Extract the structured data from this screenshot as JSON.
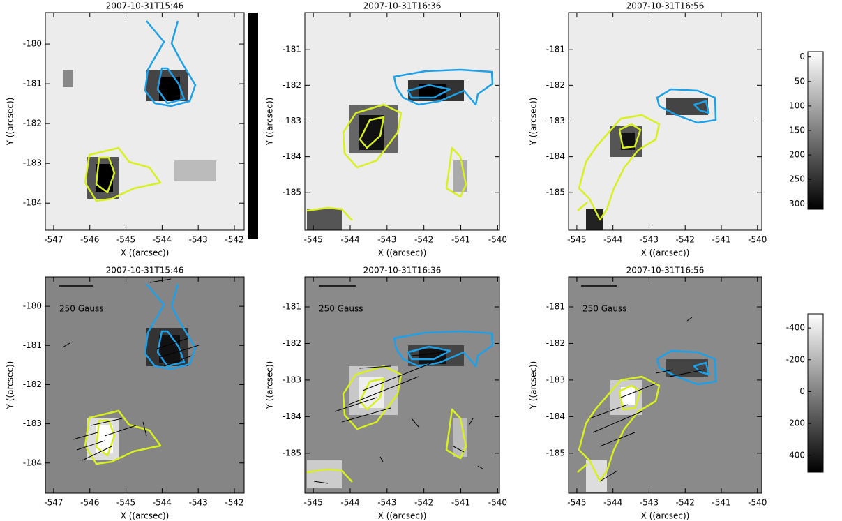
{
  "chart_data": [
    {
      "type": "image",
      "title": "2007-10-31T15:46",
      "x_label": "X ((arcsec))",
      "y_label": "Y ((arcsec))",
      "xlim": [
        -547.23,
        -541.73
      ],
      "ylim": [
        -184.68,
        -179.21
      ],
      "xticks": [
        -547,
        -546,
        -545,
        -544,
        -543,
        -542
      ],
      "yticks": [
        -184,
        -183,
        -182,
        -181,
        -180
      ]
    },
    {
      "type": "image",
      "title": "2007-10-31T16:36",
      "x_label": "X ((arcsec))",
      "y_label": "Y ((arcsec))",
      "xlim": [
        -545.23,
        -539.95
      ],
      "ylim": [
        -186.06,
        -179.96
      ],
      "xticks": [
        -545,
        -544,
        -543,
        -542,
        -541,
        -540
      ],
      "yticks": [
        -185,
        -184,
        -183,
        -182,
        -181
      ]
    },
    {
      "type": "image",
      "title": "2007-10-31T16:56",
      "x_label": "X ((arcsec))",
      "y_label": "Y ((arcsec))",
      "xlim": [
        -545.23,
        -539.88
      ],
      "ylim": [
        -186.06,
        -179.96
      ],
      "xticks": [
        -545,
        -544,
        -543,
        -542,
        -541,
        -540
      ],
      "yticks": [
        -185,
        -184,
        -183,
        -182,
        -181
      ]
    },
    {
      "type": "image",
      "title": "2007-10-31T15:46",
      "x_label": "X ((arcsec))",
      "y_label": "Y ((arcsec))",
      "annotation": "250 Gauss",
      "xlim": [
        -547.23,
        -541.73
      ],
      "ylim": [
        -184.77,
        -179.25
      ],
      "xticks": [
        -547,
        -546,
        -545,
        -544,
        -543,
        -542
      ],
      "yticks": [
        -184,
        -183,
        -182,
        -181,
        -180
      ]
    },
    {
      "type": "image",
      "title": "2007-10-31T16:36",
      "x_label": "X ((arcsec))",
      "y_label": "Y ((arcsec))",
      "annotation": "250 Gauss",
      "xlim": [
        -545.23,
        -539.95
      ],
      "ylim": [
        -186.09,
        -180.18
      ],
      "xticks": [
        -545,
        -544,
        -543,
        -542,
        -541,
        -540
      ],
      "yticks": [
        -185,
        -184,
        -183,
        -182,
        -181
      ]
    },
    {
      "type": "image",
      "title": "2007-10-31T16:56",
      "x_label": "X ((arcsec))",
      "y_label": "Y ((arcsec))",
      "annotation": "250 Gauss",
      "xlim": [
        -545.23,
        -539.88
      ],
      "ylim": [
        -186.09,
        -180.18
      ],
      "xticks": [
        -545,
        -544,
        -543,
        -542,
        -541,
        -540
      ],
      "yticks": [
        -185,
        -184,
        -183,
        -182,
        -181
      ]
    },
    {
      "type": "colorbar",
      "ylim": [
        311,
        -11
      ],
      "yticks": [
        0,
        50,
        100,
        150,
        200,
        250,
        300
      ]
    },
    {
      "type": "colorbar",
      "ylim": [
        506,
        -488
      ],
      "yticks": [
        -400,
        -200,
        0,
        200,
        400
      ]
    }
  ]
}
